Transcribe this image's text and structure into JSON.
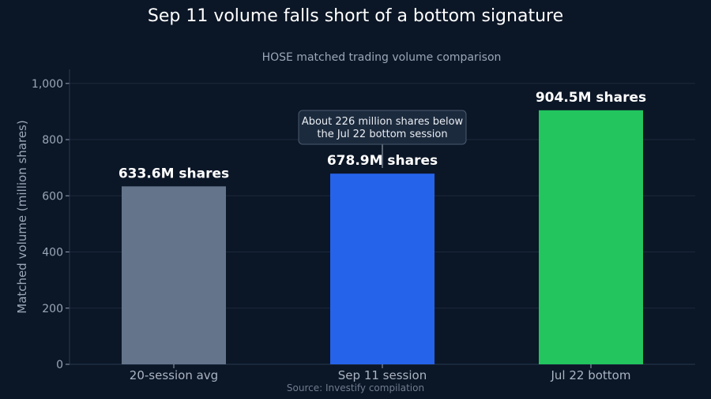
{
  "chart_data": {
    "type": "bar",
    "title": "Sep 11 volume falls short of a bottom signature",
    "subtitle": "HOSE matched trading volume comparison",
    "ylabel": "Matched volume (million shares)",
    "xlabel": "",
    "categories": [
      "20-session avg",
      "Sep 11 session",
      "Jul 22 bottom"
    ],
    "values": [
      633.6,
      678.9,
      904.5
    ],
    "data_labels": [
      "633.6M shares",
      "678.9M shares",
      "904.5M shares"
    ],
    "colors": [
      "#64748b",
      "#2563eb",
      "#22c55e"
    ],
    "ylim": [
      0,
      1050
    ],
    "yticks": [
      0,
      200,
      400,
      600,
      800,
      1000
    ],
    "ytick_labels": [
      "0",
      "200",
      "400",
      "600",
      "800",
      "1,000"
    ],
    "grid": true,
    "annotation": {
      "lines": [
        "About 226 million shares below",
        "the Jul 22 bottom session"
      ],
      "target_index": 1
    },
    "source": "Source: Investify compilation"
  }
}
